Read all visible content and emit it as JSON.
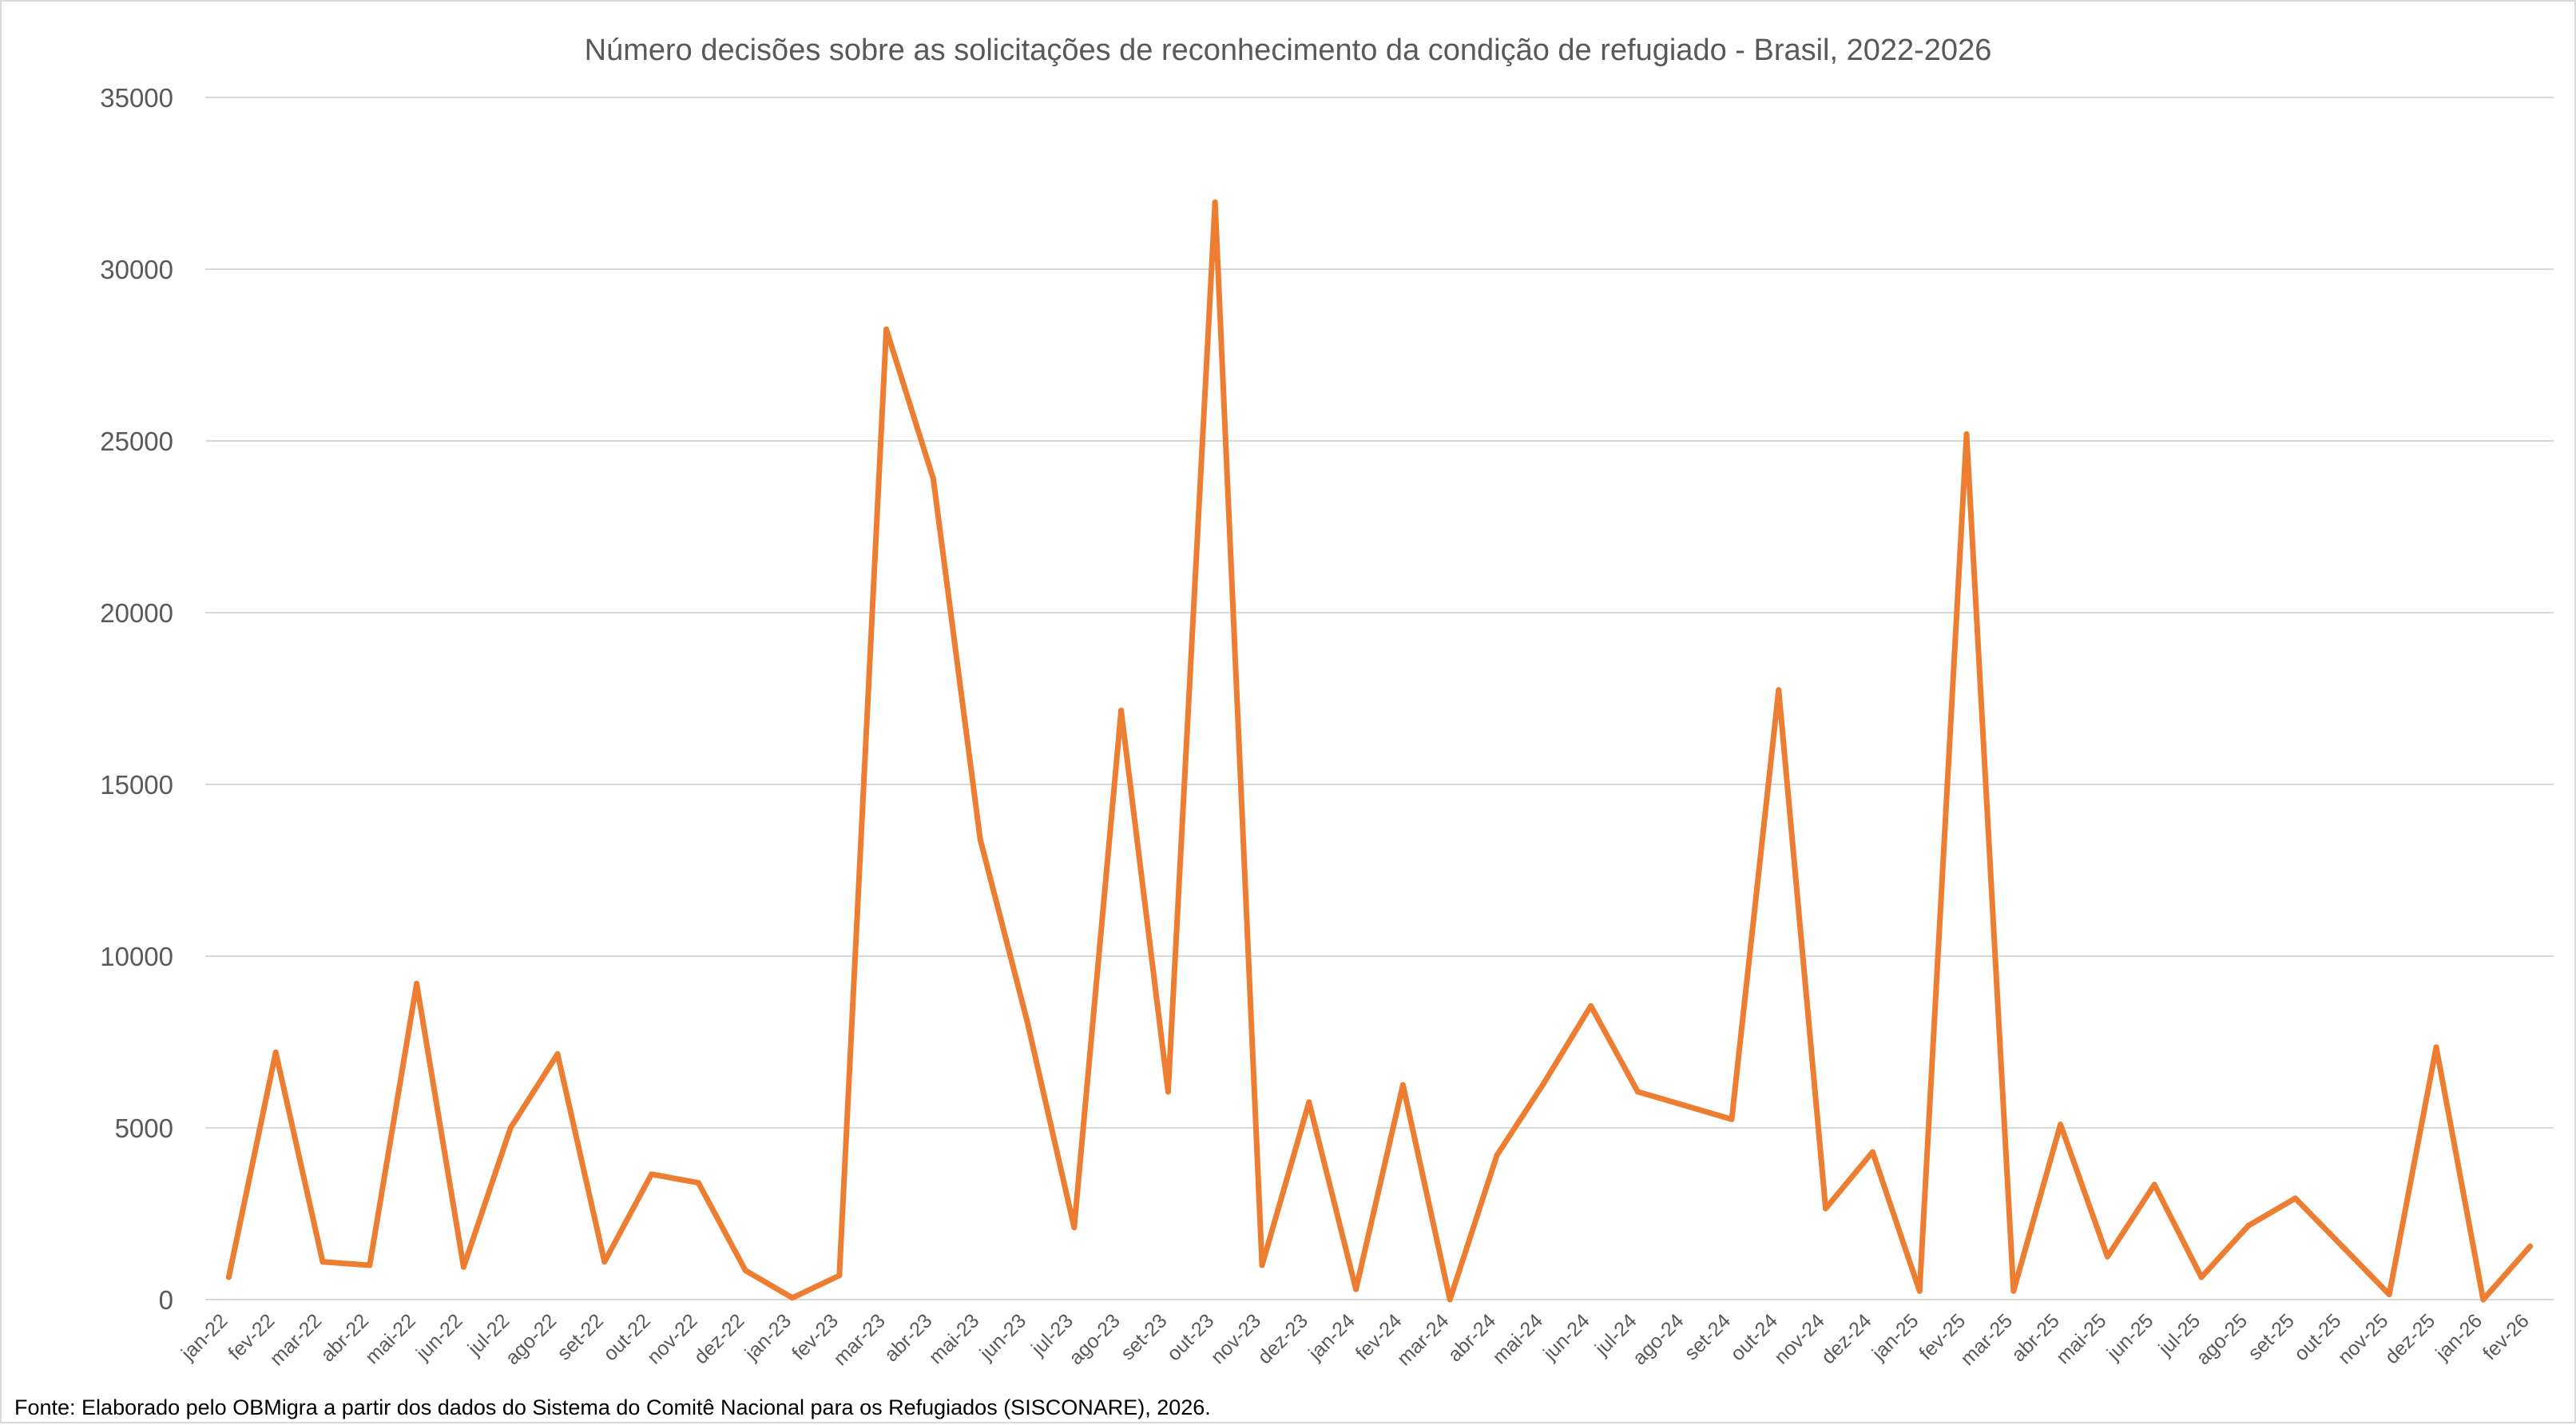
{
  "chart_data": {
    "type": "line",
    "title": "Número decisões sobre as solicitações de reconhecimento da condição de refugiado - Brasil, 2022-2026",
    "xlabel": "",
    "ylabel": "",
    "ylim": [
      0,
      35000
    ],
    "yticks": [
      0,
      5000,
      10000,
      15000,
      20000,
      25000,
      30000,
      35000
    ],
    "grid": true,
    "legend": "none",
    "categories": [
      "jan-22",
      "fev-22",
      "mar-22",
      "abr-22",
      "mai-22",
      "jun-22",
      "jul-22",
      "ago-22",
      "set-22",
      "out-22",
      "nov-22",
      "dez-22",
      "jan-23",
      "fev-23",
      "mar-23",
      "abr-23",
      "mai-23",
      "jun-23",
      "jul-23",
      "ago-23",
      "set-23",
      "out-23",
      "nov-23",
      "dez-23",
      "jan-24",
      "fev-24",
      "mar-24",
      "abr-24",
      "mai-24",
      "jun-24",
      "jul-24",
      "ago-24",
      "set-24",
      "out-24",
      "nov-24",
      "dez-24",
      "jan-25",
      "fev-25",
      "mar-25",
      "abr-25",
      "mai-25",
      "jun-25",
      "jul-25",
      "ago-25",
      "set-25",
      "out-25",
      "nov-25",
      "dez-25",
      "jan-26",
      "fev-26"
    ],
    "series": [
      {
        "color": "#ED7D31",
        "values": [
          650,
          7200,
          1100,
          1000,
          9200,
          950,
          5000,
          7150,
          1100,
          3650,
          3400,
          850,
          50,
          700,
          28250,
          23900,
          13400,
          8100,
          2100,
          17150,
          6050,
          31950,
          1000,
          5750,
          300,
          6250,
          0,
          4200,
          6300,
          8550,
          6050,
          5650,
          5250,
          17750,
          2650,
          4300,
          250,
          25200,
          250,
          5100,
          1250,
          3350,
          650,
          2150,
          2950,
          1550,
          150,
          7350,
          0,
          1550
        ]
      }
    ]
  },
  "source_note": "Fonte: Elaborado pelo OBMigra  a partir dos dados  do Sistema do Comitê Nacional para os Refugiados (SISCONARE), 2026."
}
